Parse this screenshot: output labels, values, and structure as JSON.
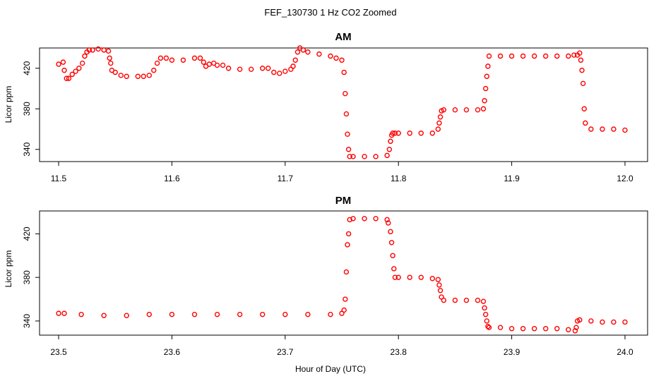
{
  "figure_title": "FEF_130730 1 Hz CO2 Zoomed",
  "x_axis_label": "Hour of Day (UTC)",
  "chart_data": [
    {
      "type": "scatter",
      "title": "AM",
      "xlabel": "",
      "ylabel": "Licor ppm",
      "xlim": [
        11.5,
        12.0
      ],
      "ylim": [
        328,
        440
      ],
      "x_ticks": [
        "11.5",
        "11.6",
        "11.7",
        "11.8",
        "11.9",
        "12.0"
      ],
      "y_ticks": [
        "340",
        "380",
        "420"
      ],
      "grid": false,
      "color": "#ff0000",
      "marker": "open-circle",
      "series": [
        {
          "x": [
            11.5,
            11.504,
            11.505,
            11.507,
            11.509,
            11.512,
            11.515,
            11.518,
            11.521,
            11.523,
            11.525,
            11.527,
            11.53,
            11.535,
            11.54,
            11.544,
            11.545,
            11.546,
            11.547,
            11.55,
            11.555,
            11.56,
            11.57,
            11.575,
            11.58,
            11.584,
            11.587,
            11.59,
            11.595,
            11.6,
            11.61,
            11.62,
            11.625,
            11.628,
            11.63,
            11.633,
            11.637,
            11.64,
            11.645,
            11.65,
            11.66,
            11.67,
            11.68,
            11.685,
            11.69,
            11.695,
            11.7,
            11.705,
            11.707,
            11.709,
            11.711,
            11.713,
            11.716,
            11.72,
            11.73,
            11.74,
            11.745,
            11.75,
            11.752,
            11.753,
            11.754,
            11.755,
            11.756,
            11.757,
            11.76,
            11.77,
            11.78,
            11.79,
            11.792,
            11.793,
            11.794,
            11.795,
            11.797,
            11.8,
            11.81,
            11.82,
            11.83,
            11.835,
            11.836,
            11.837,
            11.838,
            11.84,
            11.85,
            11.86,
            11.87,
            11.875,
            11.876,
            11.877,
            11.878,
            11.879,
            11.88,
            11.89,
            11.9,
            11.91,
            11.92,
            11.93,
            11.94,
            11.95,
            11.955,
            11.958,
            11.96,
            11.961,
            11.962,
            11.963,
            11.964,
            11.965,
            11.97,
            11.98,
            11.99,
            12.0
          ],
          "y": [
            424,
            426,
            418,
            410,
            410,
            414,
            417,
            420,
            425,
            432,
            436,
            438,
            438,
            439,
            438,
            437,
            430,
            425,
            418,
            416,
            413,
            412,
            412,
            412,
            413,
            418,
            425,
            430,
            430,
            428,
            428,
            430,
            430,
            426,
            422,
            424,
            425,
            423,
            423,
            420,
            419,
            419,
            420,
            420,
            416,
            415,
            417,
            419,
            422,
            428,
            436,
            440,
            438,
            436,
            434,
            432,
            430,
            428,
            416,
            395,
            375,
            355,
            340,
            333,
            333,
            333,
            333,
            334,
            340,
            348,
            354,
            356,
            356,
            356,
            356,
            356,
            356,
            360,
            366,
            372,
            378,
            379,
            379,
            379,
            379,
            380,
            388,
            400,
            412,
            422,
            432,
            432,
            432,
            432,
            432,
            432,
            432,
            432,
            433,
            433,
            435,
            428,
            418,
            405,
            380,
            366,
            360,
            360,
            360,
            359
          ]
        }
      ]
    },
    {
      "type": "scatter",
      "title": "PM",
      "xlabel": "Hour of Day (UTC)",
      "ylabel": "Licor ppm",
      "xlim": [
        23.5,
        24.0
      ],
      "ylim": [
        327,
        441
      ],
      "x_ticks": [
        "23.5",
        "23.6",
        "23.7",
        "23.8",
        "23.9",
        "24.0"
      ],
      "y_ticks": [
        "340",
        "380",
        "420"
      ],
      "grid": false,
      "color": "#ff0000",
      "marker": "open-circle",
      "series": [
        {
          "x": [
            23.5,
            23.505,
            23.52,
            23.54,
            23.56,
            23.58,
            23.6,
            23.62,
            23.64,
            23.66,
            23.68,
            23.7,
            23.72,
            23.74,
            23.75,
            23.752,
            23.753,
            23.754,
            23.755,
            23.756,
            23.757,
            23.76,
            23.77,
            23.78,
            23.79,
            23.791,
            23.793,
            23.794,
            23.795,
            23.796,
            23.797,
            23.8,
            23.81,
            23.82,
            23.83,
            23.835,
            23.836,
            23.837,
            23.838,
            23.84,
            23.85,
            23.86,
            23.87,
            23.875,
            23.876,
            23.877,
            23.878,
            23.879,
            23.88,
            23.89,
            23.9,
            23.91,
            23.92,
            23.93,
            23.94,
            23.95,
            23.956,
            23.957,
            23.958,
            23.96,
            23.97,
            23.98,
            23.99,
            24.0
          ],
          "y": [
            347,
            347,
            346,
            345,
            345,
            346,
            346,
            346,
            346,
            346,
            346,
            346,
            346,
            346,
            347,
            350,
            360,
            385,
            410,
            420,
            433,
            434,
            434,
            434,
            433,
            430,
            422,
            412,
            400,
            388,
            380,
            380,
            380,
            380,
            379,
            378,
            373,
            368,
            362,
            359,
            359,
            359,
            359,
            358,
            352,
            346,
            340,
            335,
            334,
            334,
            333,
            333,
            333,
            333,
            333,
            332,
            331,
            334,
            340,
            341,
            340,
            339,
            339,
            339
          ]
        }
      ]
    }
  ]
}
